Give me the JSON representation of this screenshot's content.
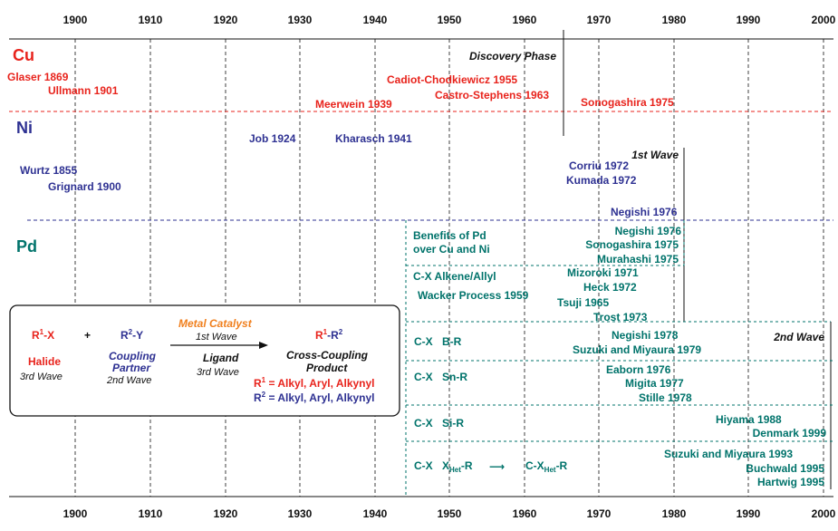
{
  "years_top": [
    "1900",
    "1910",
    "1920",
    "1930",
    "1940",
    "1950",
    "1960",
    "1970",
    "1980",
    "1990",
    "2000"
  ],
  "years_bottom": [
    "1900",
    "1910",
    "1920",
    "1930",
    "1940",
    "1950",
    "1960",
    "1970",
    "1980",
    "1990",
    "2000"
  ],
  "metals": {
    "cu": "Cu",
    "ni": "Ni",
    "pd": "Pd"
  },
  "colors": {
    "cu": "#e8231c",
    "ni": "#2e3192",
    "pd": "#00736b",
    "catalyst": "#f07f1d",
    "black": "#111111"
  },
  "phases": {
    "discovery": "Discovery Phase",
    "first_wave": "1st Wave",
    "second_wave": "2nd Wave"
  },
  "cu_events": {
    "glaser": "Glaser 1869",
    "ullmann": "Ullmann 1901",
    "meerwein": "Meerwein 1939",
    "cadiot": "Cadiot-Chodkiewicz 1955",
    "castro": "Castro-Stephens 1963",
    "sonogashira": "Sonogashira 1975"
  },
  "ni_events": {
    "job": "Job 1924",
    "kharasch": "Kharasch 1941",
    "wurtz": "Wurtz 1855",
    "grignard": "Grignard 1900",
    "corriu": "Corriu 1972",
    "kumada": "Kumada 1972",
    "negishi": "Negishi 1976"
  },
  "pd_benefits": {
    "line1": "Benefits of Pd",
    "line2": "over Cu and Ni",
    "e1": "Negishi 1976",
    "e2": "Sonogashira 1975",
    "e3": "Murahashi 1975"
  },
  "pd_alkene": {
    "cat": "C-X Alkene/Allyl",
    "wacker": "Wacker Process 1959",
    "e1": "Mizoroki 1971",
    "e2": "Heck 1972",
    "e3": "Tsuji 1965",
    "e4": "Trost 1973"
  },
  "pd_boron": {
    "cat": "C-X",
    "partner": "B-R",
    "e1": "Negishi 1978",
    "e2": "Suzuki and Miyaura 1979"
  },
  "pd_tin": {
    "cat": "C-X",
    "partner": "Sn-R",
    "e1": "Eaborn 1976",
    "e2": "Migita 1977",
    "e3": "Stille 1978"
  },
  "pd_silicon": {
    "cat": "C-X",
    "partner": "Si-R",
    "e1": "Hiyama 1988",
    "e2": "Denmark 1999"
  },
  "pd_hetero": {
    "cat": "C-X",
    "x": "X",
    "x_sub": "Het",
    "x_tail": "-R",
    "arrow": "⟶",
    "prod": "C-X",
    "prod_sub": "Het",
    "prod_tail": "-R",
    "e1": "Suzuki and Miyaura 1993",
    "e2": "Buchwald 1995",
    "e3": "Hartwig 1995"
  },
  "scheme": {
    "r1": "R",
    "r1_sup": "1",
    "r1_tail": "-X",
    "plus": "+",
    "r2": "R",
    "r2_sup": "2",
    "r2_tail": "-Y",
    "halide": "Halide",
    "halide_wave": "3rd Wave",
    "coupling1": "Coupling",
    "coupling2": "Partner",
    "partner_wave": "2nd Wave",
    "catalyst": "Metal Catalyst",
    "catalyst_wave": "1st Wave",
    "ligand": "Ligand",
    "ligand_wave": "3rd Wave",
    "prod_r1": "R",
    "prod_r1_sup": "1",
    "prod_dash": "-R",
    "prod_r2_sup": "2",
    "product1": "Cross-Coupling",
    "product2": "Product",
    "r1_def": "R",
    "r1_def_sup": "1",
    "r1_def_tail": " = Alkyl, Aryl, Alkynyl",
    "r2_def": "R",
    "r2_def_sup": "2",
    "r2_def_tail": " = Alkyl, Aryl, Alkynyl"
  }
}
